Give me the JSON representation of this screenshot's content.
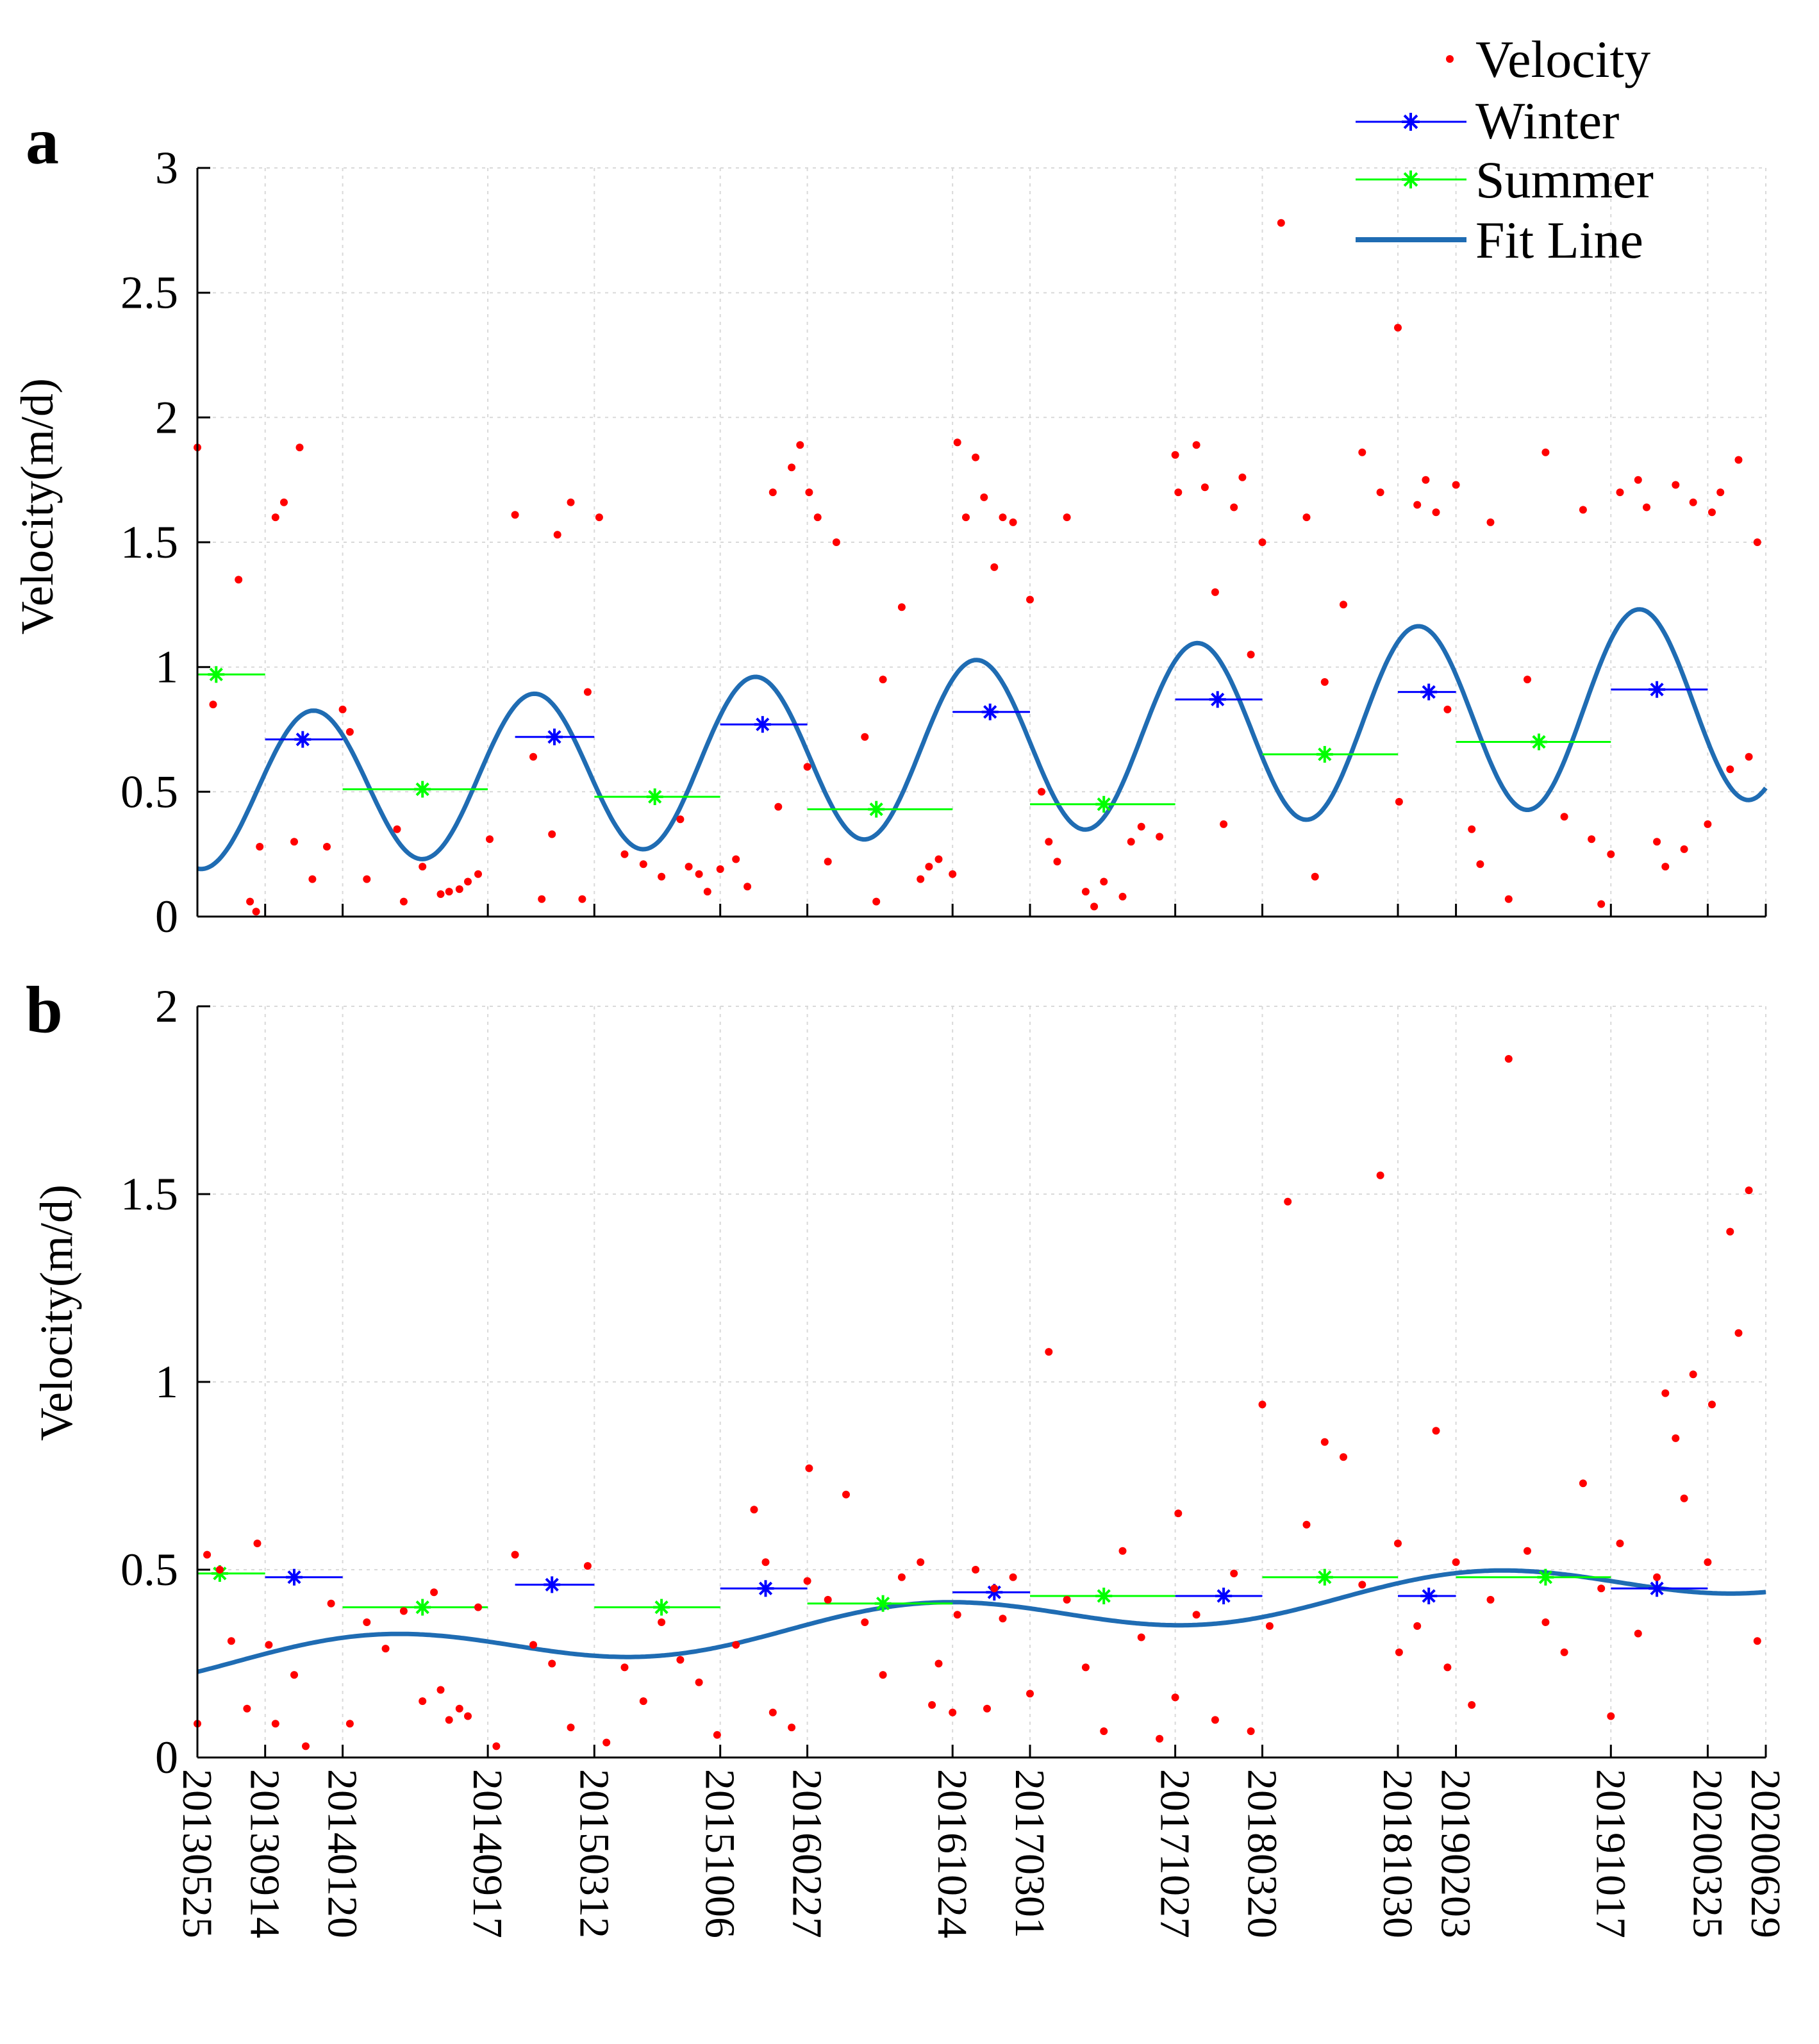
{
  "chart_data": [
    {
      "type": "scatter",
      "panel_label": "a",
      "ylabel": "Velocity(m/d)",
      "ylim": [
        0,
        3
      ],
      "yticks": [
        0,
        0.5,
        1,
        1.5,
        2,
        2.5,
        3
      ],
      "ytick_labels": [
        "0",
        "0.5",
        "1",
        "1.5",
        "2",
        "2.5",
        "3"
      ],
      "x_range": [
        "20130525",
        "20200629"
      ],
      "velocity_points": [
        [
          20130525,
          1.88
        ],
        [
          20130620,
          0.85
        ],
        [
          20130801,
          1.35
        ],
        [
          20130820,
          0.06
        ],
        [
          20130830,
          0.02
        ],
        [
          20130905,
          0.28
        ],
        [
          20131001,
          1.6
        ],
        [
          20131015,
          1.66
        ],
        [
          20131101,
          0.3
        ],
        [
          20131110,
          1.88
        ],
        [
          20131201,
          0.15
        ],
        [
          20131225,
          0.28
        ],
        [
          20140120,
          0.83
        ],
        [
          20140201,
          0.74
        ],
        [
          20140301,
          0.15
        ],
        [
          20140420,
          0.35
        ],
        [
          20140501,
          0.06
        ],
        [
          20140601,
          0.2
        ],
        [
          20140701,
          0.09
        ],
        [
          20140715,
          0.1
        ],
        [
          20140801,
          0.11
        ],
        [
          20140815,
          0.14
        ],
        [
          20140901,
          0.17
        ],
        [
          20140920,
          0.31
        ],
        [
          20141101,
          1.61
        ],
        [
          20141201,
          0.64
        ],
        [
          20141215,
          0.07
        ],
        [
          20150101,
          0.33
        ],
        [
          20150110,
          1.53
        ],
        [
          20150201,
          1.66
        ],
        [
          20150220,
          0.07
        ],
        [
          20150301,
          0.9
        ],
        [
          20150320,
          1.6
        ],
        [
          20150501,
          0.25
        ],
        [
          20150601,
          0.21
        ],
        [
          20150701,
          0.16
        ],
        [
          20150801,
          0.39
        ],
        [
          20150815,
          0.2
        ],
        [
          20150901,
          0.17
        ],
        [
          20150915,
          0.1
        ],
        [
          20151006,
          0.19
        ],
        [
          20151101,
          0.23
        ],
        [
          20151120,
          0.12
        ],
        [
          20160101,
          1.7
        ],
        [
          20160110,
          0.44
        ],
        [
          20160201,
          1.8
        ],
        [
          20160215,
          1.89
        ],
        [
          20160227,
          0.6
        ],
        [
          20160301,
          1.7
        ],
        [
          20160315,
          1.6
        ],
        [
          20160401,
          0.22
        ],
        [
          20160415,
          1.5
        ],
        [
          20160601,
          0.72
        ],
        [
          20160620,
          0.06
        ],
        [
          20160701,
          0.95
        ],
        [
          20160801,
          1.24
        ],
        [
          20160901,
          0.15
        ],
        [
          20160915,
          0.2
        ],
        [
          20161001,
          0.23
        ],
        [
          20161024,
          0.17
        ],
        [
          20161101,
          1.9
        ],
        [
          20161115,
          1.6
        ],
        [
          20161201,
          1.84
        ],
        [
          20161215,
          1.68
        ],
        [
          20170101,
          1.4
        ],
        [
          20170115,
          1.6
        ],
        [
          20170201,
          1.58
        ],
        [
          20170301,
          1.27
        ],
        [
          20170320,
          0.5
        ],
        [
          20170401,
          0.3
        ],
        [
          20170415,
          0.22
        ],
        [
          20170501,
          1.6
        ],
        [
          20170601,
          0.1
        ],
        [
          20170615,
          0.04
        ],
        [
          20170701,
          0.14
        ],
        [
          20170801,
          0.08
        ],
        [
          20170815,
          0.3
        ],
        [
          20170901,
          0.36
        ],
        [
          20171001,
          0.32
        ],
        [
          20171027,
          1.85
        ],
        [
          20171101,
          1.7
        ],
        [
          20171201,
          1.89
        ],
        [
          20171215,
          1.72
        ],
        [
          20180101,
          1.3
        ],
        [
          20180115,
          0.37
        ],
        [
          20180201,
          1.64
        ],
        [
          20180215,
          1.76
        ],
        [
          20180301,
          1.05
        ],
        [
          20180320,
          1.5
        ],
        [
          20180420,
          2.78
        ],
        [
          20180601,
          1.6
        ],
        [
          20180615,
          0.16
        ],
        [
          20180701,
          0.94
        ],
        [
          20180801,
          1.25
        ],
        [
          20180901,
          1.86
        ],
        [
          20181001,
          1.7
        ],
        [
          20181030,
          2.36
        ],
        [
          20181101,
          0.46
        ],
        [
          20181201,
          1.65
        ],
        [
          20181215,
          1.75
        ],
        [
          20190101,
          1.62
        ],
        [
          20190120,
          0.83
        ],
        [
          20190203,
          1.73
        ],
        [
          20190301,
          0.35
        ],
        [
          20190315,
          0.21
        ],
        [
          20190401,
          1.58
        ],
        [
          20190501,
          0.07
        ],
        [
          20190601,
          0.95
        ],
        [
          20190701,
          1.86
        ],
        [
          20190801,
          0.4
        ],
        [
          20190901,
          1.63
        ],
        [
          20190915,
          0.31
        ],
        [
          20191001,
          0.05
        ],
        [
          20191017,
          0.25
        ],
        [
          20191101,
          1.7
        ],
        [
          20191201,
          1.75
        ],
        [
          20191215,
          1.64
        ],
        [
          20200101,
          0.3
        ],
        [
          20200115,
          0.2
        ],
        [
          20200201,
          1.73
        ],
        [
          20200215,
          0.27
        ],
        [
          20200301,
          1.66
        ],
        [
          20200325,
          0.37
        ],
        [
          20200401,
          1.62
        ],
        [
          20200415,
          1.7
        ],
        [
          20200501,
          0.59
        ],
        [
          20200515,
          1.83
        ],
        [
          20200601,
          0.64
        ],
        [
          20200615,
          1.5
        ]
      ],
      "winter_means": [
        {
          "start": "20130914",
          "end": "20140120",
          "mid": "20131115",
          "value": 0.71
        },
        {
          "start": "20141101",
          "end": "20150312",
          "mid": "20150105",
          "value": 0.72
        },
        {
          "start": "20151006",
          "end": "20160227",
          "mid": "20151215",
          "value": 0.77
        },
        {
          "start": "20161024",
          "end": "20170301",
          "mid": "20161225",
          "value": 0.82
        },
        {
          "start": "20171027",
          "end": "20180320",
          "mid": "20180105",
          "value": 0.87
        },
        {
          "start": "20181030",
          "end": "20190203",
          "mid": "20181220",
          "value": 0.9
        },
        {
          "start": "20191017",
          "end": "20200325",
          "mid": "20200101",
          "value": 0.91
        }
      ],
      "summer_means": [
        {
          "start": "20130525",
          "end": "20130914",
          "mid": "20130625",
          "value": 0.97
        },
        {
          "start": "20140120",
          "end": "20140917",
          "mid": "20140601",
          "value": 0.51
        },
        {
          "start": "20150312",
          "end": "20151006",
          "mid": "20150620",
          "value": 0.48
        },
        {
          "start": "20160227",
          "end": "20161024",
          "mid": "20160620",
          "value": 0.43
        },
        {
          "start": "20170301",
          "end": "20171027",
          "mid": "20170701",
          "value": 0.45
        },
        {
          "start": "20180320",
          "end": "20181030",
          "mid": "20180701",
          "value": 0.65
        },
        {
          "start": "20190203",
          "end": "20191017",
          "mid": "20190620",
          "value": 0.7
        }
      ],
      "fit_line": {
        "model": "trend + seasonal sinusoid",
        "trend_start": 0.49,
        "trend_end": 0.87,
        "amplitude_start": 0.3,
        "amplitude_end": 0.4,
        "peak_date": "20131201",
        "period_days": 365.25
      },
      "grid": true
    },
    {
      "type": "scatter",
      "panel_label": "b",
      "ylabel": "Velocity(m/d)",
      "ylim": [
        0,
        2
      ],
      "yticks": [
        0,
        0.5,
        1,
        1.5,
        2
      ],
      "ytick_labels": [
        "0",
        "0.5",
        "1",
        "1.5",
        "2"
      ],
      "x_range": [
        "20130525",
        "20200629"
      ],
      "xtick_labels": [
        "20130525",
        "20130914",
        "20140120",
        "20140917",
        "20150312",
        "20151006",
        "20160227",
        "20161024",
        "20170301",
        "20171027",
        "20180320",
        "20181030",
        "20190203",
        "20191017",
        "20200325",
        "20200629"
      ],
      "velocity_points": [
        [
          20130525,
          0.09
        ],
        [
          20130610,
          0.54
        ],
        [
          20130701,
          0.5
        ],
        [
          20130720,
          0.31
        ],
        [
          20130815,
          0.13
        ],
        [
          20130901,
          0.57
        ],
        [
          20130920,
          0.3
        ],
        [
          20131001,
          0.09
        ],
        [
          20131101,
          0.22
        ],
        [
          20131120,
          0.03
        ],
        [
          20140101,
          0.41
        ],
        [
          20140201,
          0.09
        ],
        [
          20140301,
          0.36
        ],
        [
          20140401,
          0.29
        ],
        [
          20140501,
          0.39
        ],
        [
          20140601,
          0.15
        ],
        [
          20140620,
          0.44
        ],
        [
          20140701,
          0.18
        ],
        [
          20140715,
          0.1
        ],
        [
          20140801,
          0.13
        ],
        [
          20140815,
          0.11
        ],
        [
          20140901,
          0.4
        ],
        [
          20141001,
          0.03
        ],
        [
          20141101,
          0.54
        ],
        [
          20141201,
          0.3
        ],
        [
          20150101,
          0.25
        ],
        [
          20150201,
          0.08
        ],
        [
          20150301,
          0.51
        ],
        [
          20150401,
          0.04
        ],
        [
          20150501,
          0.24
        ],
        [
          20150601,
          0.15
        ],
        [
          20150701,
          0.36
        ],
        [
          20150801,
          0.26
        ],
        [
          20150901,
          0.2
        ],
        [
          20151001,
          0.06
        ],
        [
          20151101,
          0.3
        ],
        [
          20151201,
          0.66
        ],
        [
          20151220,
          0.52
        ],
        [
          20160101,
          0.12
        ],
        [
          20160201,
          0.08
        ],
        [
          20160227,
          0.47
        ],
        [
          20160301,
          0.77
        ],
        [
          20160401,
          0.42
        ],
        [
          20160501,
          0.7
        ],
        [
          20160601,
          0.36
        ],
        [
          20160701,
          0.22
        ],
        [
          20160801,
          0.48
        ],
        [
          20160901,
          0.52
        ],
        [
          20160920,
          0.14
        ],
        [
          20161001,
          0.25
        ],
        [
          20161024,
          0.12
        ],
        [
          20161101,
          0.38
        ],
        [
          20161201,
          0.5
        ],
        [
          20161220,
          0.13
        ],
        [
          20170101,
          0.45
        ],
        [
          20170115,
          0.37
        ],
        [
          20170201,
          0.48
        ],
        [
          20170301,
          0.17
        ],
        [
          20170401,
          1.08
        ],
        [
          20170501,
          0.42
        ],
        [
          20170601,
          0.24
        ],
        [
          20170701,
          0.07
        ],
        [
          20170801,
          0.55
        ],
        [
          20170901,
          0.32
        ],
        [
          20171001,
          0.05
        ],
        [
          20171027,
          0.16
        ],
        [
          20171101,
          0.65
        ],
        [
          20171201,
          0.38
        ],
        [
          20180101,
          0.1
        ],
        [
          20180201,
          0.49
        ],
        [
          20180301,
          0.07
        ],
        [
          20180320,
          0.94
        ],
        [
          20180401,
          0.35
        ],
        [
          20180501,
          1.48
        ],
        [
          20180601,
          0.62
        ],
        [
          20180701,
          0.84
        ],
        [
          20180801,
          0.8
        ],
        [
          20180901,
          0.46
        ],
        [
          20181001,
          1.55
        ],
        [
          20181030,
          0.57
        ],
        [
          20181101,
          0.28
        ],
        [
          20181201,
          0.35
        ],
        [
          20190101,
          0.87
        ],
        [
          20190120,
          0.24
        ],
        [
          20190203,
          0.52
        ],
        [
          20190301,
          0.14
        ],
        [
          20190401,
          0.42
        ],
        [
          20190501,
          1.86
        ],
        [
          20190601,
          0.55
        ],
        [
          20190701,
          0.36
        ],
        [
          20190801,
          0.28
        ],
        [
          20190901,
          0.73
        ],
        [
          20191001,
          0.45
        ],
        [
          20191017,
          0.11
        ],
        [
          20191101,
          0.57
        ],
        [
          20191201,
          0.33
        ],
        [
          20200101,
          0.48
        ],
        [
          20200115,
          0.97
        ],
        [
          20200201,
          0.85
        ],
        [
          20200215,
          0.69
        ],
        [
          20200301,
          1.02
        ],
        [
          20200325,
          0.52
        ],
        [
          20200401,
          0.94
        ],
        [
          20200501,
          1.4
        ],
        [
          20200515,
          1.13
        ],
        [
          20200601,
          1.51
        ],
        [
          20200615,
          0.31
        ]
      ],
      "winter_means": [
        {
          "start": "20130914",
          "end": "20140120",
          "mid": "20131101",
          "value": 0.48
        },
        {
          "start": "20141101",
          "end": "20150312",
          "mid": "20150101",
          "value": 0.46
        },
        {
          "start": "20151006",
          "end": "20160227",
          "mid": "20151220",
          "value": 0.45
        },
        {
          "start": "20161024",
          "end": "20170301",
          "mid": "20170101",
          "value": 0.44
        },
        {
          "start": "20171027",
          "end": "20180320",
          "mid": "20180115",
          "value": 0.43
        },
        {
          "start": "20181030",
          "end": "20190203",
          "mid": "20181220",
          "value": 0.43
        },
        {
          "start": "20191017",
          "end": "20200325",
          "mid": "20200101",
          "value": 0.45
        }
      ],
      "summer_means": [
        {
          "start": "20130525",
          "end": "20130914",
          "mid": "20130701",
          "value": 0.49
        },
        {
          "start": "20140120",
          "end": "20140917",
          "mid": "20140601",
          "value": 0.4
        },
        {
          "start": "20150312",
          "end": "20151006",
          "mid": "20150701",
          "value": 0.4
        },
        {
          "start": "20160227",
          "end": "20161024",
          "mid": "20160701",
          "value": 0.41
        },
        {
          "start": "20170301",
          "end": "20171027",
          "mid": "20170701",
          "value": 0.43
        },
        {
          "start": "20180320",
          "end": "20181030",
          "mid": "20180701",
          "value": 0.48
        },
        {
          "start": "20190203",
          "end": "20191017",
          "mid": "20190701",
          "value": 0.48
        }
      ],
      "fit_line": {
        "model": "trend + seasonal sinusoid",
        "trend_start": 0.25,
        "trend_end": 0.49,
        "amplitude_start": 0.05,
        "amplitude_end": 0.05,
        "peak_date": "20140315",
        "period_days": 912
      },
      "grid": true
    }
  ],
  "legend": {
    "placement": "top-right",
    "entries": [
      {
        "label": "Velocity",
        "color": "#ff0000",
        "marker": "dot"
      },
      {
        "label": "Winter",
        "color": "#0000ff",
        "marker": "star-line"
      },
      {
        "label": "Summer",
        "color": "#00ff00",
        "marker": "star-line"
      },
      {
        "label": "Fit Line",
        "color": "#1f6cb3",
        "marker": "line"
      }
    ]
  },
  "colors": {
    "velocity": "#ff0000",
    "winter": "#0000ff",
    "summer": "#00ff00",
    "fit_line": "#1f6cb3"
  }
}
